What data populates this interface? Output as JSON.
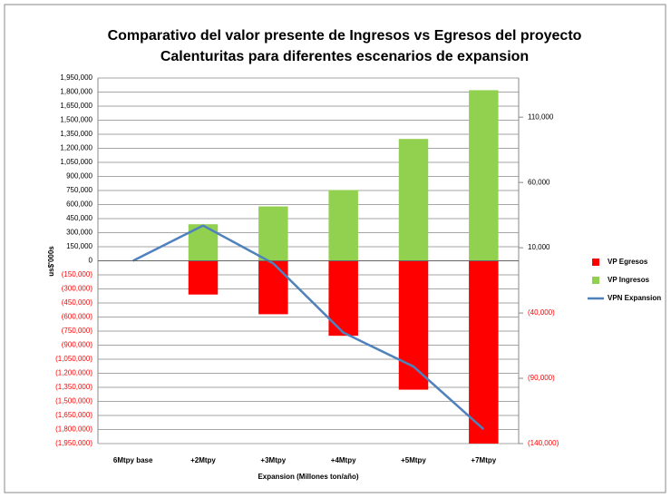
{
  "chart_data": {
    "type": "bar",
    "title": "Comparativo del valor presente de Ingresos vs Egresos del proyecto",
    "subtitle": "Calenturitas para diferentes escenarios de expansion",
    "xlabel": "Expansion (Millones ton/año)",
    "ylabel": "us$'000s",
    "categories": [
      "6Mtpy base",
      "+2Mtpy",
      "+3Mtpy",
      "+4Mtpy",
      "+5Mtpy",
      "+7Mtpy"
    ],
    "series": [
      {
        "name": "VP Egresos",
        "type": "bar",
        "color": "#ff0000",
        "values": [
          0,
          -360000,
          -570000,
          -800000,
          -1375000,
          -1950000
        ]
      },
      {
        "name": "VP Ingresos",
        "type": "bar",
        "color": "#92d050",
        "values": [
          0,
          390000,
          580000,
          755000,
          1300000,
          1820000
        ]
      },
      {
        "name": "VPN Expansion",
        "type": "line",
        "axis": "y2",
        "color": "#4f81bd",
        "values": [
          0,
          27000,
          -2000,
          -55000,
          -81000,
          -129000
        ]
      }
    ],
    "ylim": [
      -1950000,
      1950000
    ],
    "yticks": [
      {
        "value": -1950000,
        "label": "(1,950,000)"
      },
      {
        "value": -1800000,
        "label": "(1,800,000)"
      },
      {
        "value": -1650000,
        "label": "(1,650,000)"
      },
      {
        "value": -1500000,
        "label": "(1,500,000)"
      },
      {
        "value": -1350000,
        "label": "(1,350,000)"
      },
      {
        "value": -1200000,
        "label": "(1,200,000)"
      },
      {
        "value": -1050000,
        "label": "(1,050,000)"
      },
      {
        "value": -900000,
        "label": "(900,000)"
      },
      {
        "value": -750000,
        "label": "(750,000)"
      },
      {
        "value": -600000,
        "label": "(600,000)"
      },
      {
        "value": -450000,
        "label": "(450,000)"
      },
      {
        "value": -300000,
        "label": "(300,000)"
      },
      {
        "value": -150000,
        "label": "(150,000)"
      },
      0,
      {
        "value": 150000,
        "label": "150,000"
      },
      {
        "value": 300000,
        "label": "300,000"
      },
      {
        "value": 450000,
        "label": "450,000"
      },
      {
        "value": 600000,
        "label": "600,000"
      },
      {
        "value": 750000,
        "label": "750,000"
      },
      {
        "value": 900000,
        "label": "900,000"
      },
      {
        "value": 1050000,
        "label": "1,050,000"
      },
      {
        "value": 1200000,
        "label": "1,200,000"
      },
      {
        "value": 1350000,
        "label": "1,350,000"
      },
      {
        "value": 1500000,
        "label": "1,500,000"
      },
      {
        "value": 1650000,
        "label": "1,650,000"
      },
      {
        "value": 1800000,
        "label": "1,800,000"
      },
      {
        "value": 1950000,
        "label": "1,950,000"
      }
    ],
    "y2lim": [
      -140000,
      140000
    ],
    "y2ticks": [
      {
        "value": -140000,
        "label": "(140,000)"
      },
      {
        "value": -90000,
        "label": "(90,000)"
      },
      {
        "value": -40000,
        "label": "(40,000)"
      },
      {
        "value": 10000,
        "label": "10,000"
      },
      {
        "value": 60000,
        "label": "60,000"
      },
      {
        "value": 110000,
        "label": "110,000"
      }
    ],
    "grid": true,
    "legend": "right"
  }
}
